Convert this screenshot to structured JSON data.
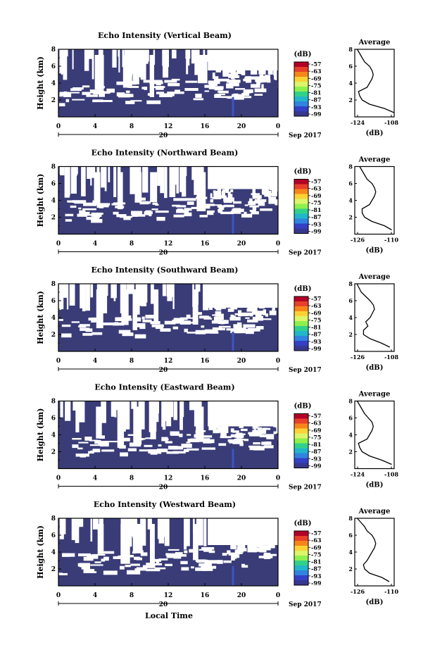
{
  "colorbar": {
    "unit": "(dB)",
    "ticks": [
      "-57",
      "-63",
      "-69",
      "-75",
      "-81",
      "-87",
      "-93",
      "-99"
    ],
    "colors": [
      "#b40026",
      "#e8402a",
      "#f7861a",
      "#fdd235",
      "#dcf56a",
      "#8ef04d",
      "#32d18a",
      "#21b6c9",
      "#3183e0",
      "#3340c6",
      "#37378f"
    ]
  },
  "background_color": "#3a3c78",
  "xaxis": {
    "tick_labels": [
      "0",
      "4",
      "8",
      "12",
      "16",
      "20",
      "0"
    ],
    "date_day": "20",
    "date_month_year": "Sep 2017",
    "label": "Local Time"
  },
  "yaxis": {
    "label": "Height (km)",
    "tick_labels": [
      "2",
      "4",
      "6",
      "8"
    ]
  },
  "profile_title": "Average",
  "profile_unit": "(dB)",
  "chart_data": [
    {
      "type": "heatmap",
      "title": "Echo Intensity (Vertical Beam)",
      "xlabel": "",
      "ylabel": "Height (km)",
      "xlim": [
        0,
        24
      ],
      "ylim": [
        0,
        8
      ],
      "profile": {
        "title": "Average",
        "xlabel": "(dB)",
        "xlim": [
          -124,
          -108
        ],
        "x_tick_labels": [
          "-124",
          "-108"
        ],
        "heights": [
          0.5,
          1,
          1.5,
          2,
          2.5,
          3,
          3.5,
          4,
          4.5,
          5,
          5.5,
          6,
          6.5,
          7,
          7.5,
          8
        ],
        "values": [
          -108,
          -112,
          -118,
          -121,
          -122,
          -122.5,
          -119,
          -118,
          -117,
          -116.5,
          -117,
          -118,
          -120,
          -121,
          -122,
          -123
        ]
      }
    },
    {
      "type": "heatmap",
      "title": "Echo Intensity (Northward Beam)",
      "xlabel": "",
      "ylabel": "Height (km)",
      "xlim": [
        0,
        24
      ],
      "ylim": [
        0,
        8
      ],
      "profile": {
        "title": "Average",
        "xlabel": "(dB)",
        "xlim": [
          -126,
          -110
        ],
        "x_tick_labels": [
          "-126",
          "-110"
        ],
        "heights": [
          0.5,
          1,
          1.5,
          2,
          2.5,
          3,
          3.5,
          4,
          4.5,
          5,
          5.5,
          6,
          6.5,
          7,
          7.5,
          8
        ],
        "values": [
          -111,
          -114,
          -119,
          -122,
          -123,
          -123,
          -120,
          -119,
          -118,
          -117.5,
          -118,
          -119,
          -121,
          -122,
          -123,
          -124
        ]
      }
    },
    {
      "type": "heatmap",
      "title": "Echo Intensity (Southward Beam)",
      "xlabel": "",
      "ylabel": "Height (km)",
      "xlim": [
        0,
        24
      ],
      "ylim": [
        0,
        8
      ],
      "profile": {
        "title": "Average",
        "xlabel": "(dB)",
        "xlim": [
          -126,
          -108
        ],
        "x_tick_labels": [
          "-126",
          "-108"
        ],
        "heights": [
          0.5,
          1,
          1.5,
          2,
          2.5,
          3,
          3.5,
          4,
          4.5,
          5,
          5.5,
          6,
          6.5,
          7,
          7.5,
          8
        ],
        "values": [
          -110,
          -114,
          -119,
          -122,
          -122,
          -120,
          -121,
          -119,
          -118,
          -117,
          -117.5,
          -119,
          -121,
          -123,
          -124,
          -125
        ]
      }
    },
    {
      "type": "heatmap",
      "title": "Echo Intensity (Eastward Beam)",
      "xlabel": "",
      "ylabel": "Height (km)",
      "xlim": [
        0,
        24
      ],
      "ylim": [
        0,
        8
      ],
      "profile": {
        "title": "Average",
        "xlabel": "(dB)",
        "xlim": [
          -124,
          -108
        ],
        "x_tick_labels": [
          "-124",
          "-108"
        ],
        "heights": [
          0.5,
          1,
          1.5,
          2,
          2.5,
          3,
          3.5,
          4,
          4.5,
          5,
          5.5,
          6,
          6.5,
          7,
          7.5,
          8
        ],
        "values": [
          -109,
          -113,
          -118,
          -121,
          -122,
          -122.5,
          -119,
          -118,
          -117,
          -116.5,
          -117,
          -118.5,
          -120,
          -121,
          -122,
          -123
        ]
      }
    },
    {
      "type": "heatmap",
      "title": "Echo Intensity (Westward Beam)",
      "xlabel": "",
      "ylabel": "Height (km)",
      "xlim": [
        0,
        24
      ],
      "ylim": [
        0,
        8
      ],
      "profile": {
        "title": "Average",
        "xlabel": "(dB)",
        "xlim": [
          -126,
          -110
        ],
        "x_tick_labels": [
          "-126",
          "-110"
        ],
        "heights": [
          0.5,
          1,
          1.5,
          2,
          2.5,
          3,
          3.5,
          4,
          4.5,
          5,
          5.5,
          6,
          6.5,
          7,
          7.5,
          8
        ],
        "values": [
          -112,
          -115,
          -120,
          -122,
          -122.5,
          -121,
          -120,
          -119,
          -118,
          -117.5,
          -118,
          -119,
          -121,
          -122,
          -123.5,
          -125
        ]
      }
    }
  ]
}
